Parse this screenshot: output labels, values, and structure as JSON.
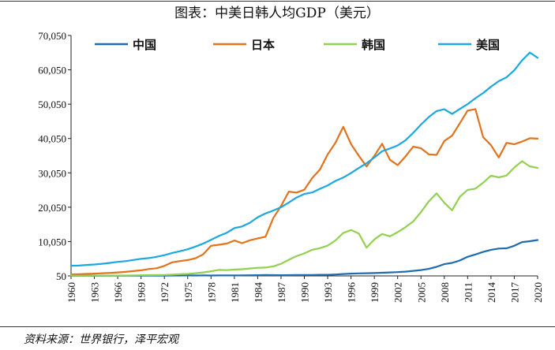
{
  "chart_data": {
    "type": "line",
    "title": "图表：中美日韩人均GDP（美元）",
    "xlabel": "",
    "ylabel": "",
    "ylim": [
      50,
      70050
    ],
    "xlim": [
      1960,
      2020
    ],
    "yticks": [
      50,
      10050,
      20050,
      30050,
      40050,
      50050,
      60050,
      70050
    ],
    "ytick_labels": [
      "50",
      "10,050",
      "20,050",
      "30,050",
      "40,050",
      "50,050",
      "60,050",
      "70,050"
    ],
    "xticks": [
      1960,
      1963,
      1966,
      1969,
      1972,
      1975,
      1978,
      1981,
      1984,
      1987,
      1990,
      1993,
      1996,
      1999,
      2002,
      2005,
      2008,
      2011,
      2014,
      2017,
      2020
    ],
    "grid": false,
    "legend_position": "top",
    "x": [
      1960,
      1961,
      1962,
      1963,
      1964,
      1965,
      1966,
      1967,
      1968,
      1969,
      1970,
      1971,
      1972,
      1973,
      1974,
      1975,
      1976,
      1977,
      1978,
      1979,
      1980,
      1981,
      1982,
      1983,
      1984,
      1985,
      1986,
      1987,
      1988,
      1989,
      1990,
      1991,
      1992,
      1993,
      1994,
      1995,
      1996,
      1997,
      1998,
      1999,
      2000,
      2001,
      2002,
      2003,
      2004,
      2005,
      2006,
      2007,
      2008,
      2009,
      2010,
      2011,
      2012,
      2013,
      2014,
      2015,
      2016,
      2017,
      2018,
      2019,
      2020
    ],
    "series": [
      {
        "name": "中国",
        "color": "#1f6bb0",
        "values": [
          90,
          76,
          70,
          74,
          85,
          98,
          104,
          96,
          91,
          100,
          113,
          118,
          132,
          157,
          160,
          178,
          165,
          185,
          156,
          184,
          195,
          197,
          203,
          225,
          251,
          294,
          282,
          252,
          284,
          311,
          318,
          333,
          366,
          377,
          473,
          610,
          709,
          781,
          828,
          873,
          959,
          1053,
          1148,
          1288,
          1508,
          1753,
          2099,
          2694,
          3468,
          3832,
          4550,
          5614,
          6300,
          7020,
          7636,
          8016,
          8094,
          8817,
          9905,
          10144,
          10500
        ]
      },
      {
        "name": "日本",
        "color": "#e2731c",
        "values": [
          479,
          563,
          633,
          717,
          836,
          919,
          1058,
          1228,
          1451,
          1669,
          2037,
          2272,
          2967,
          3997,
          4354,
          4659,
          5197,
          6335,
          8821,
          9105,
          9463,
          10361,
          9578,
          10425,
          10984,
          11465,
          16882,
          20355,
          24592,
          24313,
          25124,
          28541,
          31014,
          35451,
          38815,
          43440,
          38437,
          35022,
          31903,
          35010,
          38532,
          33846,
          32289,
          34808,
          37688,
          37218,
          35434,
          35275,
          39339,
          40855,
          44508,
          48168,
          48603,
          40454,
          38109,
          34524,
          38794,
          38387,
          39159,
          40113,
          40000
        ]
      },
      {
        "name": "韩国",
        "color": "#92d050",
        "values": [
          158,
          94,
          106,
          146,
          124,
          108,
          133,
          161,
          198,
          243,
          279,
          301,
          323,
          406,
          563,
          615,
          834,
          1055,
          1405,
          1784,
          1715,
          1883,
          1993,
          2199,
          2413,
          2482,
          2835,
          3555,
          4749,
          5817,
          6610,
          7637,
          8127,
          8885,
          10385,
          12565,
          13403,
          12398,
          8282,
          10672,
          12257,
          11561,
          12789,
          14219,
          15907,
          18640,
          21743,
          24086,
          21350,
          19144,
          23087,
          25096,
          25459,
          27180,
          29250,
          28737,
          29274,
          31601,
          33447,
          31929,
          31500
        ]
      },
      {
        "name": "美国",
        "color": "#1ba8e0",
        "values": [
          3007,
          3067,
          3244,
          3375,
          3574,
          3828,
          4146,
          4336,
          4696,
          5032,
          5234,
          5609,
          6094,
          6726,
          7226,
          7801,
          8592,
          9453,
          10565,
          11674,
          12575,
          13976,
          14434,
          15544,
          17121,
          18237,
          19071,
          20039,
          21417,
          22857,
          23889,
          24342,
          25419,
          26387,
          27695,
          28691,
          29968,
          31459,
          32854,
          34515,
          36335,
          37133,
          38023,
          39497,
          41712,
          44115,
          46299,
          48050,
          48570,
          47195,
          48651,
          50066,
          51784,
          53291,
          55124,
          56763,
          57867,
          59915,
          62805,
          65095,
          63544
        ]
      }
    ]
  }
}
